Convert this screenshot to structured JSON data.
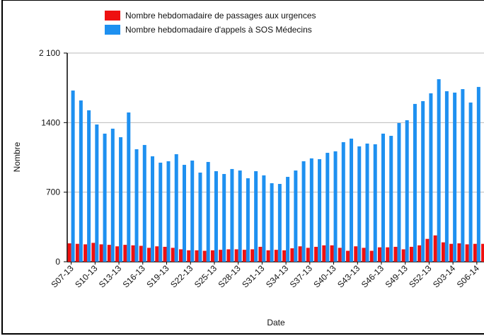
{
  "chart_data": {
    "type": "bar",
    "categories": [
      "S07-13",
      null,
      null,
      "S10-13",
      null,
      null,
      "S13-13",
      null,
      null,
      "S16-13",
      null,
      null,
      "S19-13",
      null,
      null,
      "S22-13",
      null,
      null,
      "S25-13",
      null,
      null,
      "S28-13",
      null,
      null,
      "S31-13",
      null,
      null,
      "S34-13",
      null,
      null,
      "S37-13",
      null,
      null,
      "S40-13",
      null,
      null,
      "S43-13",
      null,
      null,
      "S46-13",
      null,
      null,
      "S49-13",
      null,
      null,
      "S52-13",
      null,
      null,
      "S03-14",
      null,
      null,
      "S06-14",
      null
    ],
    "series": [
      {
        "name": "Nombre hebdomadaire de passages aux urgences",
        "color": "#ee1111",
        "values": [
          185,
          180,
          175,
          190,
          175,
          170,
          155,
          170,
          165,
          160,
          140,
          155,
          150,
          140,
          125,
          115,
          115,
          110,
          115,
          120,
          125,
          125,
          120,
          125,
          150,
          115,
          120,
          115,
          135,
          155,
          140,
          150,
          165,
          165,
          140,
          110,
          155,
          140,
          110,
          145,
          145,
          150,
          125,
          150,
          165,
          230,
          265,
          195,
          180,
          185,
          175,
          180,
          180
        ]
      },
      {
        "name": "Nombre hebdomadaire d'appels à SOS Médecins",
        "color": "#1e90f0",
        "values": [
          1723,
          1623,
          1524,
          1381,
          1289,
          1339,
          1253,
          1502,
          1132,
          1175,
          1061,
          997,
          1011,
          1082,
          975,
          1018,
          897,
          1004,
          911,
          883,
          933,
          918,
          840,
          911,
          869,
          790,
          783,
          854,
          918,
          1011,
          1040,
          1032,
          1096,
          1111,
          1203,
          1239,
          1161,
          1189,
          1182,
          1289,
          1267,
          1396,
          1424,
          1588,
          1616,
          1695,
          1837,
          1716,
          1702,
          1737,
          1602,
          1759,
          1744
        ]
      }
    ],
    "ylim": [
      0,
      2100
    ],
    "yticks": [
      0,
      700,
      1400,
      {
        "value": 2100,
        "label": "2 100"
      }
    ],
    "grid": true,
    "xlabel": "Date",
    "ylabel": "Nombre"
  }
}
